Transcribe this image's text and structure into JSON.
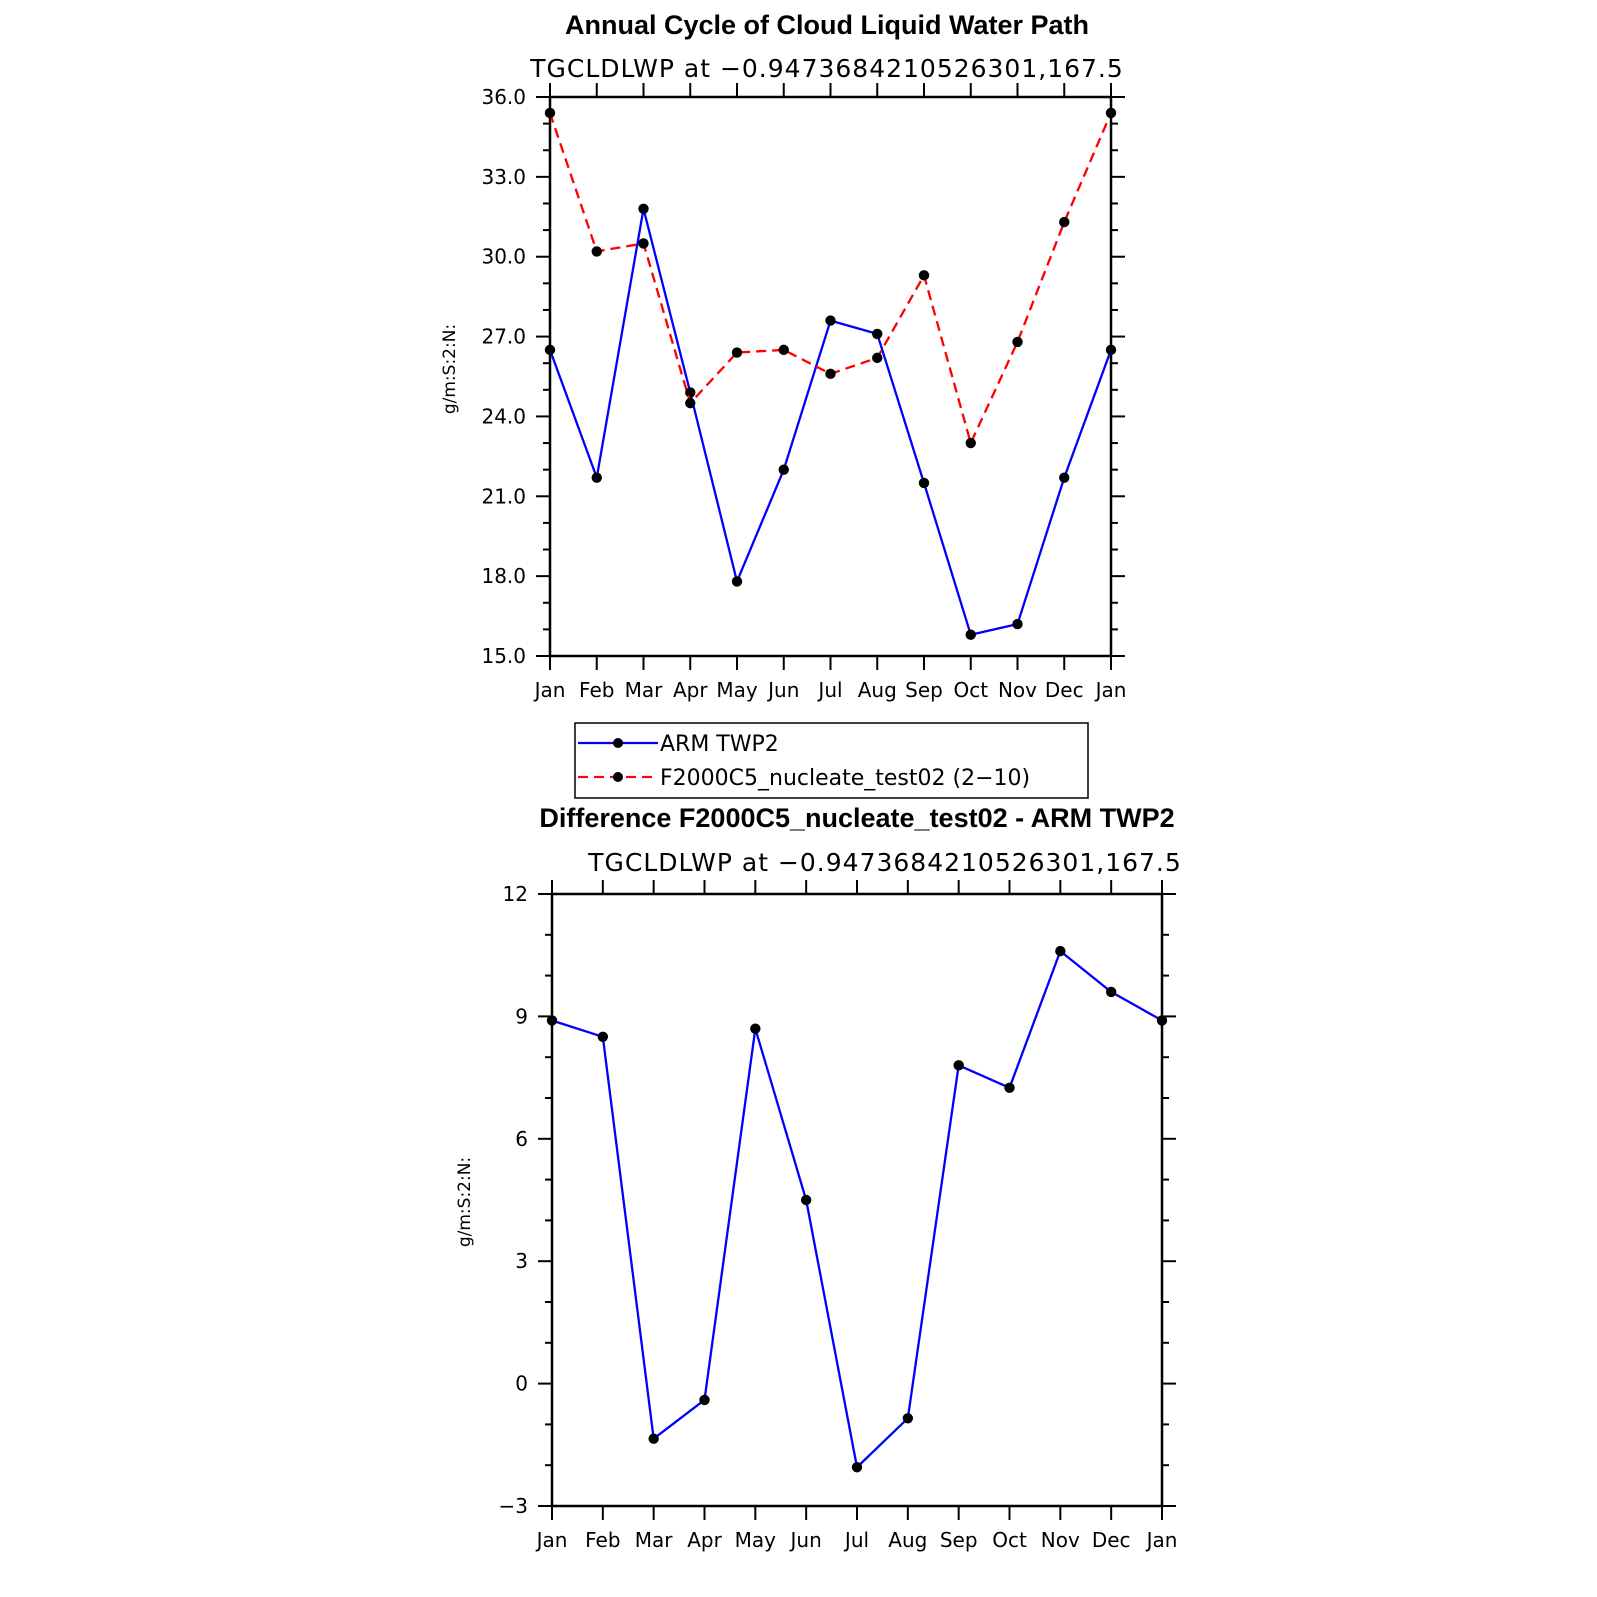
{
  "chart_data": [
    {
      "type": "line",
      "title": "Annual Cycle of Cloud Liquid Water Path",
      "subtitle": "TGCLDLWP at −0.9473684210526301,167.5",
      "xlabel": "",
      "ylabel": "g/m:S:2:N:",
      "categories": [
        "Jan",
        "Feb",
        "Mar",
        "Apr",
        "May",
        "Jun",
        "Jul",
        "Aug",
        "Sep",
        "Oct",
        "Nov",
        "Dec",
        "Jan"
      ],
      "ylim": [
        15.0,
        36.0
      ],
      "yticks": [
        "15.0",
        "18.0",
        "21.0",
        "24.0",
        "27.0",
        "30.0",
        "33.0",
        "36.0"
      ],
      "grid": false,
      "legend_position": "below",
      "series": [
        {
          "name": "ARM TWP2",
          "color": "#0000ff",
          "dash": "solid",
          "values": [
            26.5,
            21.7,
            31.8,
            24.9,
            17.8,
            22.0,
            27.6,
            27.1,
            21.5,
            15.8,
            16.2,
            21.7,
            26.5
          ]
        },
        {
          "name": "F2000C5_nucleate_test02 (2−10)",
          "color": "#ff0000",
          "dash": "dashed",
          "values": [
            35.4,
            30.2,
            30.5,
            24.5,
            26.4,
            26.5,
            25.6,
            26.2,
            29.3,
            23.0,
            26.8,
            31.3,
            35.4
          ]
        }
      ]
    },
    {
      "type": "line",
      "title": "Difference F2000C5_nucleate_test02 - ARM TWP2",
      "subtitle": "TGCLDLWP at −0.9473684210526301,167.5",
      "xlabel": "",
      "ylabel": "g/m:S:2:N:",
      "categories": [
        "Jan",
        "Feb",
        "Mar",
        "Apr",
        "May",
        "Jun",
        "Jul",
        "Aug",
        "Sep",
        "Oct",
        "Nov",
        "Dec",
        "Jan"
      ],
      "ylim": [
        -3,
        12
      ],
      "yticks": [
        "−3",
        "0",
        "3",
        "6",
        "9",
        "12"
      ],
      "grid": false,
      "series": [
        {
          "color": "#0000ff",
          "dash": "solid",
          "values": [
            8.9,
            8.5,
            -1.35,
            -0.4,
            8.7,
            4.5,
            -2.05,
            -0.85,
            7.8,
            7.25,
            10.6,
            9.6,
            8.9
          ]
        }
      ]
    }
  ]
}
